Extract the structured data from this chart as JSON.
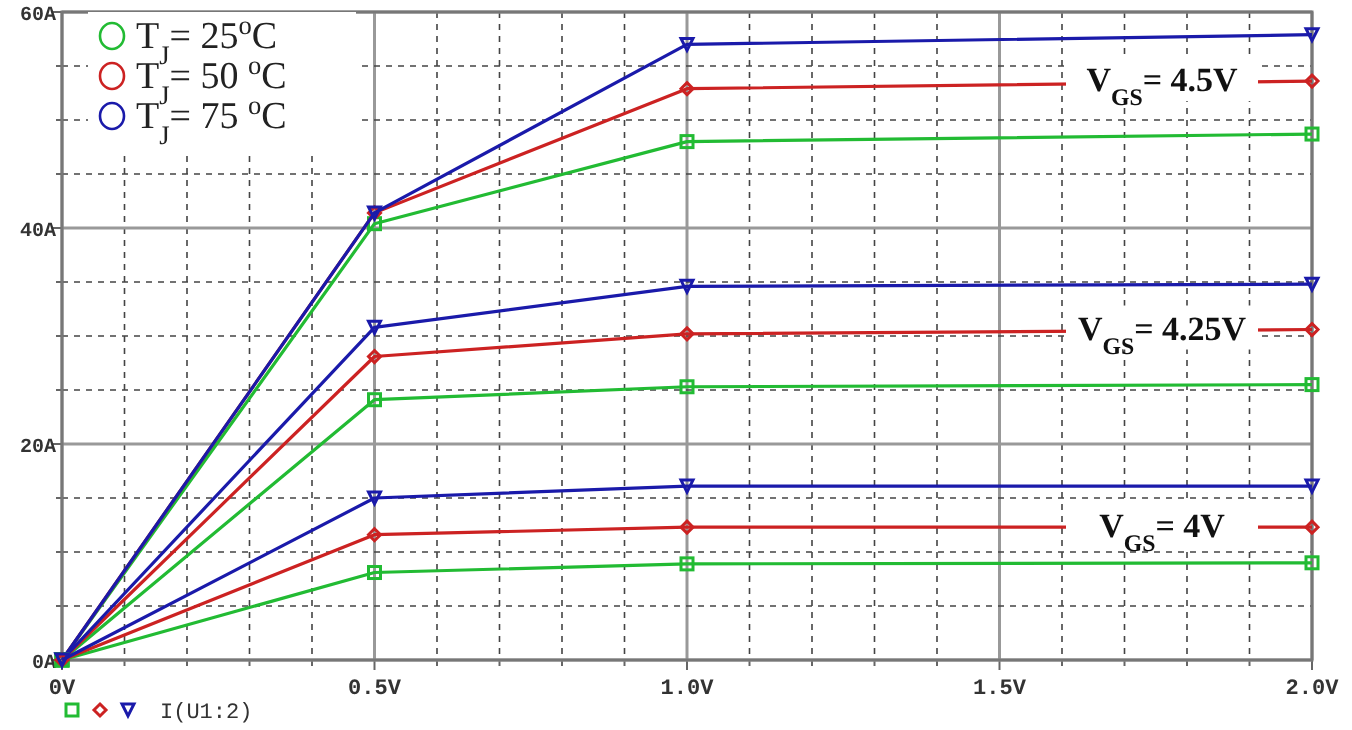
{
  "chart_data": {
    "type": "line",
    "x": [
      0,
      0.5,
      1.0,
      2.0
    ],
    "xlim": [
      0,
      2.0
    ],
    "xticks": [
      {
        "value": 0,
        "label": "0V"
      },
      {
        "value": 0.1,
        "label": null
      },
      {
        "value": 0.2,
        "label": null
      },
      {
        "value": 0.3,
        "label": null
      },
      {
        "value": 0.4,
        "label": null
      },
      {
        "value": 0.5,
        "label": "0.5V"
      },
      {
        "value": 0.6,
        "label": null
      },
      {
        "value": 0.7,
        "label": null
      },
      {
        "value": 0.8,
        "label": null
      },
      {
        "value": 0.9,
        "label": null
      },
      {
        "value": 1.0,
        "label": "1.0V"
      },
      {
        "value": 1.1,
        "label": null
      },
      {
        "value": 1.2,
        "label": null
      },
      {
        "value": 1.3,
        "label": null
      },
      {
        "value": 1.4,
        "label": null
      },
      {
        "value": 1.5,
        "label": "1.5V"
      },
      {
        "value": 1.6,
        "label": null
      },
      {
        "value": 1.7,
        "label": null
      },
      {
        "value": 1.8,
        "label": null
      },
      {
        "value": 1.9,
        "label": null
      },
      {
        "value": 2.0,
        "label": "2.0V"
      }
    ],
    "ylim": [
      0,
      60
    ],
    "yticks": [
      {
        "value": 0,
        "label": "0A"
      },
      {
        "value": 5,
        "label": null
      },
      {
        "value": 10,
        "label": null
      },
      {
        "value": 15,
        "label": null
      },
      {
        "value": 20,
        "label": "20A"
      },
      {
        "value": 25,
        "label": null
      },
      {
        "value": 30,
        "label": null
      },
      {
        "value": 35,
        "label": null
      },
      {
        "value": 40,
        "label": "40A"
      },
      {
        "value": 45,
        "label": null
      },
      {
        "value": 50,
        "label": null
      },
      {
        "value": 55,
        "label": null
      },
      {
        "value": 60,
        "label": "60A"
      }
    ],
    "grid": true,
    "legend": "top left",
    "series": [
      {
        "name": "T$_{J}$= 25$^{o}$C",
        "color": "#22bb33",
        "marker": "square",
        "values": [
          0,
          40.4,
          48.0,
          48.7
        ]
      },
      {
        "name": "T$_{J}$= 50 $^{o}$C",
        "color": "#cc2222",
        "marker": "diamond",
        "values": [
          0,
          41.4,
          52.9,
          53.6
        ]
      },
      {
        "name": "T$_{J}$= 75 $^{o}$C",
        "color": "#1a1aaa",
        "marker": "triangle",
        "values": [
          0,
          41.4,
          57.0,
          57.9
        ]
      },
      {
        "color": "#22bb33",
        "marker": "square",
        "values": [
          0,
          24.1,
          25.3,
          25.5
        ]
      },
      {
        "color": "#cc2222",
        "marker": "diamond",
        "values": [
          0,
          28.1,
          30.2,
          30.6
        ]
      },
      {
        "color": "#1a1aaa",
        "marker": "triangle",
        "values": [
          0,
          30.8,
          34.6,
          34.8
        ]
      },
      {
        "color": "#22bb33",
        "marker": "square",
        "values": [
          0,
          8.1,
          8.9,
          9.0
        ]
      },
      {
        "color": "#cc2222",
        "marker": "diamond",
        "values": [
          0,
          11.6,
          12.3,
          12.3
        ]
      },
      {
        "color": "#1a1aaa",
        "marker": "triangle",
        "values": [
          0,
          15.0,
          16.1,
          16.1
        ]
      }
    ],
    "annotations": [
      {
        "text": "V$_{GS}$= 4.5V",
        "y": 53.6
      },
      {
        "text": "V$_{GS}$= 4.25V",
        "y": 30.6
      },
      {
        "text": "V$_{GS}$= 4V",
        "y": 12.3
      },
      "I(U1:2)"
    ]
  }
}
